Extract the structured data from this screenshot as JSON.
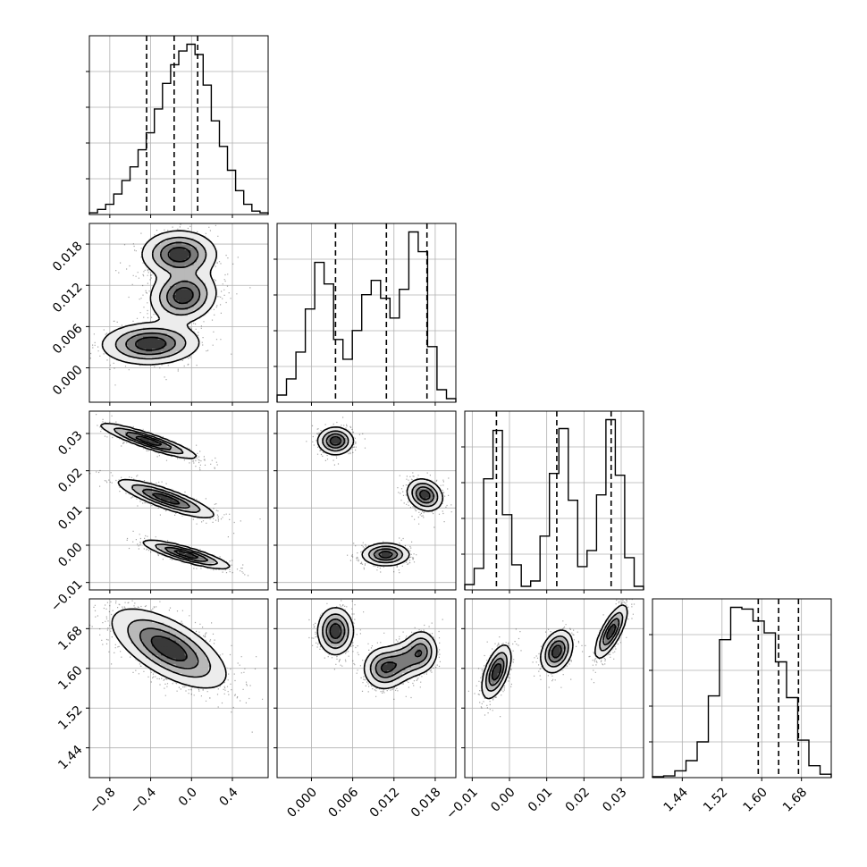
{
  "chart_data": {
    "type": "corner",
    "title": "",
    "n_params": 4,
    "grid": true,
    "axes": [
      {
        "range": [
          -1.0,
          0.75
        ],
        "ticks": [
          -0.8,
          -0.4,
          0.0,
          0.4
        ],
        "tick_labels": [
          "−0.8",
          "−0.4",
          "0.0",
          "0.4"
        ],
        "quantiles": [
          -0.44,
          -0.17,
          0.06
        ],
        "hist": [
          0.01,
          0.03,
          0.06,
          0.12,
          0.2,
          0.28,
          0.38,
          0.48,
          0.62,
          0.77,
          0.88,
          0.96,
          1.0,
          0.94,
          0.76,
          0.55,
          0.4,
          0.26,
          0.14,
          0.06,
          0.02,
          0.01
        ]
      },
      {
        "range": [
          -0.005,
          0.021
        ],
        "ticks": [
          0.0,
          0.006,
          0.012,
          0.018
        ],
        "tick_labels": [
          "0.000",
          "0.006",
          "0.012",
          "0.018"
        ],
        "quantiles": [
          0.0035,
          0.0109,
          0.0168
        ],
        "hist": [
          0.04,
          0.13,
          0.28,
          0.52,
          0.78,
          0.66,
          0.35,
          0.24,
          0.4,
          0.6,
          0.68,
          0.58,
          0.47,
          0.63,
          0.95,
          0.84,
          0.31,
          0.07,
          0.02
        ]
      },
      {
        "range": [
          -0.012,
          0.036
        ],
        "ticks": [
          -0.01,
          0.0,
          0.01,
          0.02,
          0.03
        ],
        "tick_labels": [
          "−0.01",
          "0.00",
          "0.01",
          "0.02",
          "0.03"
        ],
        "quantiles": [
          -0.0035,
          0.0127,
          0.0273
        ],
        "hist": [
          0.03,
          0.12,
          0.62,
          0.89,
          0.42,
          0.14,
          0.02,
          0.05,
          0.3,
          0.65,
          0.9,
          0.5,
          0.13,
          0.22,
          0.53,
          0.95,
          0.64,
          0.18,
          0.02
        ]
      },
      {
        "range": [
          1.38,
          1.74
        ],
        "ticks": [
          1.44,
          1.52,
          1.6,
          1.68
        ],
        "tick_labels": [
          "1.44",
          "1.52",
          "1.60",
          "1.68"
        ],
        "quantiles": [
          1.593,
          1.634,
          1.674
        ],
        "hist": [
          0.005,
          0.01,
          0.04,
          0.1,
          0.21,
          0.48,
          0.81,
          1.0,
          0.99,
          0.92,
          0.85,
          0.68,
          0.47,
          0.22,
          0.07,
          0.02
        ]
      }
    ],
    "joint": {
      "1,0": [
        {
          "cx": -0.12,
          "cy": 0.0165,
          "sx": 0.17,
          "sy": 0.0016,
          "rho": 0.0,
          "w": 0.33
        },
        {
          "cx": -0.08,
          "cy": 0.0105,
          "sx": 0.15,
          "sy": 0.0018,
          "rho": 0.1,
          "w": 0.33
        },
        {
          "cx": -0.4,
          "cy": 0.0035,
          "sx": 0.22,
          "sy": 0.0014,
          "rho": 0.05,
          "w": 0.34
        }
      ],
      "2,0": [
        {
          "cx": -0.42,
          "cy": 0.028,
          "sx": 0.22,
          "sy": 0.0022,
          "rho": -0.9,
          "w": 0.34
        },
        {
          "cx": -0.25,
          "cy": 0.0125,
          "sx": 0.22,
          "sy": 0.0024,
          "rho": -0.85,
          "w": 0.33
        },
        {
          "cx": -0.05,
          "cy": -0.0025,
          "sx": 0.2,
          "sy": 0.0018,
          "rho": -0.85,
          "w": 0.33
        }
      ],
      "2,1": [
        {
          "cx": 0.0035,
          "cy": 0.028,
          "sx": 0.0012,
          "sy": 0.0017,
          "rho": 0.0,
          "w": 0.34
        },
        {
          "cx": 0.0165,
          "cy": 0.0135,
          "sx": 0.0012,
          "sy": 0.002,
          "rho": -0.2,
          "w": 0.33
        },
        {
          "cx": 0.0108,
          "cy": -0.0025,
          "sx": 0.0016,
          "sy": 0.0014,
          "rho": 0.0,
          "w": 0.33
        }
      ],
      "3,0": [
        {
          "cx": -0.22,
          "cy": 1.64,
          "sx": 0.26,
          "sy": 0.037,
          "rho": -0.65,
          "w": 1.0
        }
      ],
      "3,1": [
        {
          "cx": 0.0035,
          "cy": 1.675,
          "sx": 0.0012,
          "sy": 0.022,
          "rho": 0.0,
          "w": 0.34
        },
        {
          "cx": 0.0105,
          "cy": 1.6,
          "sx": 0.0014,
          "sy": 0.02,
          "rho": 0.0,
          "w": 0.24
        },
        {
          "cx": 0.016,
          "cy": 1.635,
          "sx": 0.0011,
          "sy": 0.02,
          "rho": 0.0,
          "w": 0.2
        },
        {
          "cx": 0.0135,
          "cy": 1.615,
          "sx": 0.0018,
          "sy": 0.02,
          "rho": 0.3,
          "w": 0.22
        }
      ],
      "3,2": [
        {
          "cx": -0.0035,
          "cy": 1.593,
          "sx": 0.0018,
          "sy": 0.025,
          "rho": 0.55,
          "w": 0.34
        },
        {
          "cx": 0.0127,
          "cy": 1.634,
          "sx": 0.002,
          "sy": 0.02,
          "rho": 0.3,
          "w": 0.33
        },
        {
          "cx": 0.0273,
          "cy": 1.674,
          "sx": 0.002,
          "sy": 0.025,
          "rho": 0.75,
          "w": 0.33
        }
      ]
    },
    "contour_levels": [
      0.1,
      0.3,
      0.55,
      0.8
    ]
  }
}
